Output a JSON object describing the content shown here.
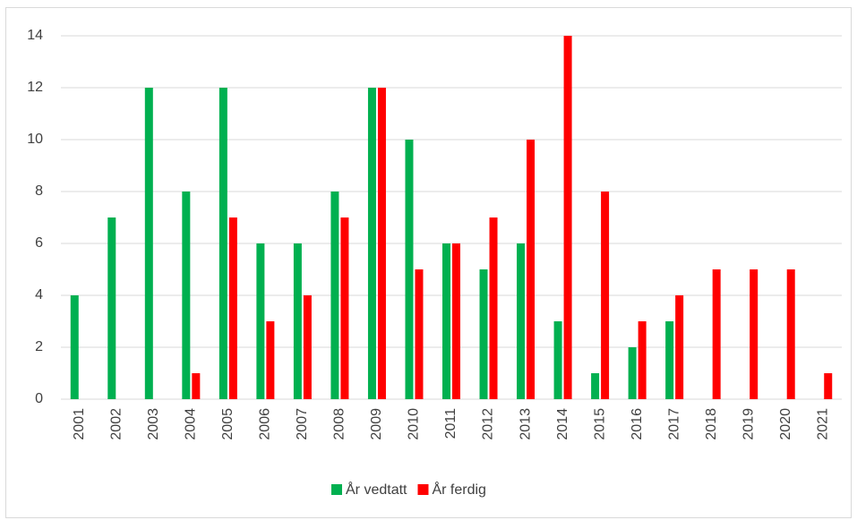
{
  "chart_data": {
    "type": "bar",
    "categories": [
      "2001",
      "2002",
      "2003",
      "2004",
      "2005",
      "2006",
      "2007",
      "2008",
      "2009",
      "2010",
      "2011",
      "2012",
      "2013",
      "2014",
      "2015",
      "2016",
      "2017",
      "2018",
      "2019",
      "2020",
      "2021"
    ],
    "series": [
      {
        "name": "År vedtatt",
        "color": "#00b050",
        "values": [
          4,
          7,
          12,
          8,
          12,
          6,
          6,
          8,
          12,
          10,
          6,
          5,
          6,
          3,
          1,
          2,
          3,
          0,
          0,
          0,
          0
        ]
      },
      {
        "name": "År ferdig",
        "color": "#ff0000",
        "values": [
          0,
          0,
          0,
          1,
          7,
          3,
          4,
          7,
          12,
          5,
          6,
          7,
          10,
          14,
          8,
          3,
          4,
          5,
          5,
          5,
          1
        ]
      }
    ],
    "ylim": [
      0,
      14
    ],
    "yticks": [
      0,
      2,
      4,
      6,
      8,
      10,
      12,
      14
    ],
    "grid": true,
    "legend": "bottom"
  }
}
